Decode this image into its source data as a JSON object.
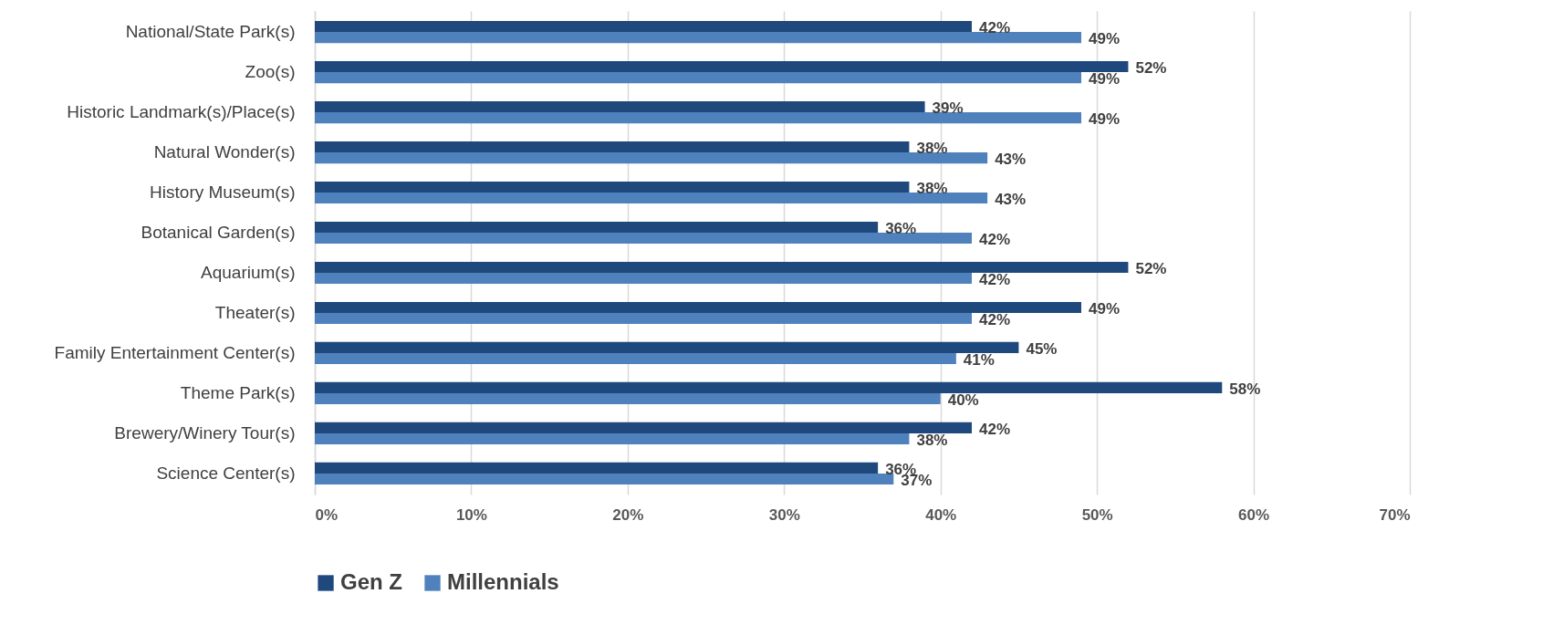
{
  "chart_data": {
    "type": "bar",
    "orientation": "horizontal",
    "categories": [
      "National/State Park(s)",
      "Zoo(s)",
      "Historic Landmark(s)/Place(s)",
      "Natural Wonder(s)",
      "History Museum(s)",
      "Botanical Garden(s)",
      "Aquarium(s)",
      "Theater(s)",
      "Family Entertainment Center(s)",
      "Theme Park(s)",
      "Brewery/Winery Tour(s)",
      "Science Center(s)"
    ],
    "series": [
      {
        "name": "Gen Z",
        "color": "#1f497d",
        "values": [
          42,
          52,
          39,
          38,
          38,
          36,
          52,
          49,
          45,
          58,
          42,
          36
        ],
        "value_labels": [
          "42%",
          "52%",
          "39%",
          "38%",
          "38%",
          "36%",
          "52%",
          "49%",
          "45%",
          "58%",
          "42%",
          "36%"
        ]
      },
      {
        "name": "Millennials",
        "color": "#4f81bd",
        "values": [
          49,
          49,
          49,
          43,
          43,
          42,
          42,
          42,
          41,
          40,
          38,
          37
        ],
        "value_labels": [
          "49%",
          "49%",
          "49%",
          "43%",
          "43%",
          "42%",
          "42%",
          "42%",
          "41%",
          "40%",
          "38%",
          "37%"
        ]
      }
    ],
    "xlim": [
      0,
      70
    ],
    "xticks": [
      {
        "value": 0,
        "label": "0%"
      },
      {
        "value": 10,
        "label": "10%"
      },
      {
        "value": 20,
        "label": "20%"
      },
      {
        "value": 30,
        "label": "30%"
      },
      {
        "value": 40,
        "label": "40%"
      },
      {
        "value": 50,
        "label": "50%"
      },
      {
        "value": 60,
        "label": "60%"
      },
      {
        "value": 70,
        "label": "70%"
      }
    ],
    "grid": "x",
    "legend": "bottom"
  }
}
